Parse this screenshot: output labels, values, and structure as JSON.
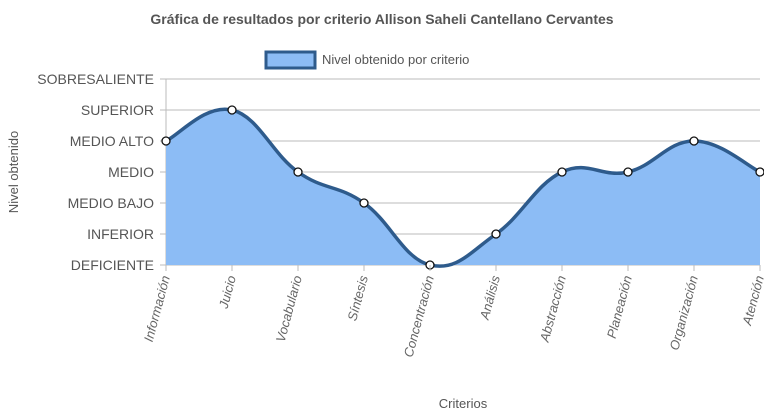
{
  "chart_data": {
    "type": "area",
    "title": "Gráfica de resultados por criterio Allison Saheli Cantellano Cervantes",
    "xlabel": "Criterios",
    "ylabel": "Nivel obtenido",
    "levels": [
      "DEFICIENTE",
      "INFERIOR",
      "MEDIO BAJO",
      "MEDIO",
      "MEDIO ALTO",
      "SUPERIOR",
      "SOBRESALIENTE"
    ],
    "categories": [
      "Información",
      "Juicio",
      "Vocabulario",
      "Síntesis",
      "Concentración",
      "Análisis",
      "Abstracción",
      "Planeación",
      "Organización",
      "Atención"
    ],
    "series": [
      {
        "name": "Nivel obtenido por criterio",
        "values": [
          4,
          5,
          3,
          2,
          0,
          1,
          3,
          3,
          4,
          3
        ]
      }
    ],
    "ylim": [
      0,
      6
    ],
    "grid": true,
    "legend": "top",
    "colors": {
      "fill": "#8cbcf5",
      "line": "#2e5b8c",
      "grid": "#bbbbbb"
    }
  }
}
